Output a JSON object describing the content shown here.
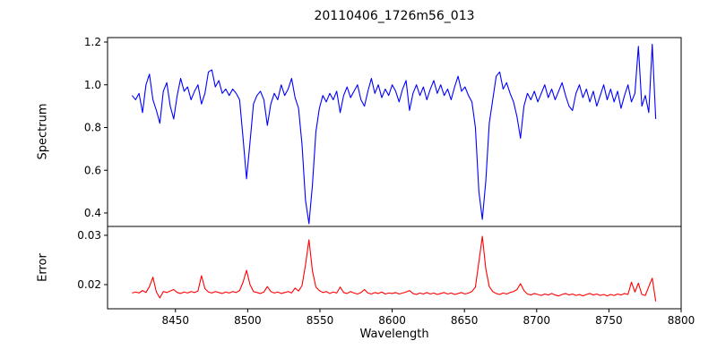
{
  "title": "20110406_1726m56_013",
  "chart_data": {
    "type": "line",
    "title": "20110406_1726m56_013",
    "xlabel": "Wavelength",
    "grid": false,
    "legend": "none",
    "xlim": [
      8403,
      8800
    ],
    "xticks": [
      8450,
      8500,
      8550,
      8600,
      8650,
      8700,
      8750,
      8800
    ],
    "xticklabels": [
      "8450",
      "8500",
      "8550",
      "8600",
      "8650",
      "8700",
      "8750",
      "8800"
    ],
    "x": {
      "start": 8420,
      "step": 2.4,
      "n": 152
    },
    "absorption_lines_angstrom": [
      8498,
      8514,
      8542,
      8662,
      8688
    ],
    "panels": [
      {
        "ylabel": "Spectrum",
        "color": "#0000ff",
        "ylim": [
          0.337,
          1.221
        ],
        "yticks": [
          0.4,
          0.6,
          0.8,
          1.0,
          1.2
        ],
        "yticklabels": [
          "0.4",
          "0.6",
          "0.8",
          "1.0",
          "1.2"
        ],
        "values": [
          0.95,
          0.93,
          0.96,
          0.87,
          1.0,
          1.05,
          0.93,
          0.88,
          0.82,
          0.97,
          1.01,
          0.9,
          0.84,
          0.95,
          1.03,
          0.97,
          0.99,
          0.93,
          0.97,
          1.0,
          0.91,
          0.96,
          1.06,
          1.07,
          0.99,
          1.02,
          0.96,
          0.98,
          0.95,
          0.98,
          0.96,
          0.93,
          0.75,
          0.56,
          0.73,
          0.91,
          0.95,
          0.97,
          0.93,
          0.81,
          0.91,
          0.96,
          0.93,
          1.0,
          0.95,
          0.98,
          1.03,
          0.94,
          0.89,
          0.72,
          0.46,
          0.35,
          0.53,
          0.78,
          0.89,
          0.95,
          0.92,
          0.96,
          0.93,
          0.97,
          0.87,
          0.95,
          0.99,
          0.94,
          0.97,
          1.0,
          0.93,
          0.9,
          0.97,
          1.03,
          0.96,
          1.0,
          0.94,
          0.98,
          0.95,
          1.0,
          0.97,
          0.92,
          0.98,
          1.02,
          0.88,
          0.96,
          1.0,
          0.95,
          0.99,
          0.93,
          0.98,
          1.02,
          0.96,
          1.0,
          0.95,
          0.98,
          0.93,
          0.99,
          1.04,
          0.97,
          0.99,
          0.95,
          0.92,
          0.8,
          0.5,
          0.37,
          0.55,
          0.82,
          0.93,
          1.04,
          1.06,
          0.98,
          1.01,
          0.96,
          0.92,
          0.85,
          0.75,
          0.9,
          0.96,
          0.93,
          0.97,
          0.92,
          0.96,
          1.0,
          0.94,
          0.98,
          0.93,
          0.97,
          1.01,
          0.95,
          0.9,
          0.88,
          0.96,
          1.0,
          0.94,
          0.98,
          0.92,
          0.97,
          0.9,
          0.95,
          1.0,
          0.93,
          0.98,
          0.92,
          0.97,
          0.89,
          0.95,
          1.0,
          0.92,
          0.96,
          1.18,
          0.9,
          0.95,
          0.87,
          1.19,
          0.84
        ]
      },
      {
        "ylabel": "Error",
        "color": "#ff0000",
        "ylim": [
          0.0151,
          0.0318
        ],
        "yticks": [
          0.02,
          0.03
        ],
        "yticklabels": [
          "0.02",
          "0.03"
        ],
        "values": [
          0.0183,
          0.0185,
          0.0183,
          0.0188,
          0.0184,
          0.0196,
          0.0215,
          0.0185,
          0.0173,
          0.0186,
          0.0184,
          0.0187,
          0.019,
          0.0184,
          0.0182,
          0.0185,
          0.0183,
          0.0186,
          0.0184,
          0.0187,
          0.0218,
          0.0192,
          0.0185,
          0.0183,
          0.0186,
          0.0184,
          0.0182,
          0.0185,
          0.0183,
          0.0186,
          0.0184,
          0.0188,
          0.0205,
          0.0229,
          0.02,
          0.0186,
          0.0184,
          0.0182,
          0.0185,
          0.0196,
          0.0186,
          0.0183,
          0.0185,
          0.0182,
          0.0184,
          0.0186,
          0.0183,
          0.0193,
          0.0187,
          0.0198,
          0.024,
          0.0291,
          0.0228,
          0.0195,
          0.0188,
          0.0184,
          0.0186,
          0.0182,
          0.0185,
          0.0183,
          0.0195,
          0.0184,
          0.0182,
          0.0186,
          0.0183,
          0.0181,
          0.0184,
          0.019,
          0.0183,
          0.0181,
          0.0184,
          0.0182,
          0.0185,
          0.0181,
          0.0183,
          0.0182,
          0.0184,
          0.0181,
          0.0183,
          0.0185,
          0.0188,
          0.0182,
          0.018,
          0.0183,
          0.0181,
          0.0184,
          0.0181,
          0.0183,
          0.018,
          0.0182,
          0.0184,
          0.0181,
          0.0183,
          0.018,
          0.0182,
          0.0184,
          0.0181,
          0.0183,
          0.0186,
          0.0195,
          0.0246,
          0.0298,
          0.0232,
          0.0196,
          0.0186,
          0.0182,
          0.018,
          0.0183,
          0.0181,
          0.0184,
          0.0186,
          0.019,
          0.0202,
          0.0188,
          0.0181,
          0.0179,
          0.0182,
          0.018,
          0.0178,
          0.0181,
          0.0179,
          0.0182,
          0.0179,
          0.0177,
          0.018,
          0.0182,
          0.0179,
          0.0181,
          0.0178,
          0.018,
          0.0177,
          0.018,
          0.0182,
          0.0179,
          0.0181,
          0.0178,
          0.018,
          0.0177,
          0.018,
          0.0178,
          0.0181,
          0.0179,
          0.0182,
          0.018,
          0.0205,
          0.0185,
          0.0203,
          0.018,
          0.0178,
          0.0196,
          0.0213,
          0.0166
        ]
      }
    ]
  }
}
